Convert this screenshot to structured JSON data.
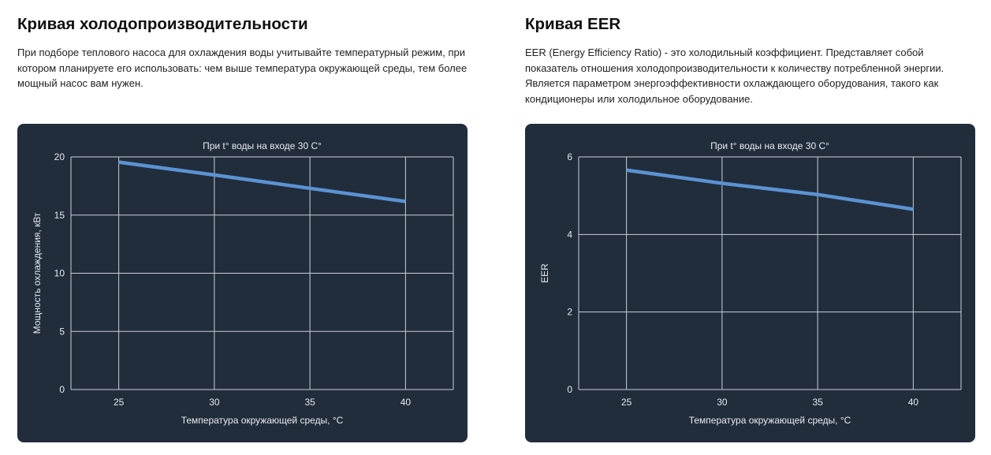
{
  "sections": [
    {
      "heading": "Кривая холодопроизводительности",
      "description": "При подборе теплового насоса для охлаждения воды учитывайте температурный режим, при котором планируете его использовать: чем выше температура окружающей среды, тем более мощный насос вам нужен."
    },
    {
      "heading": "Кривая EER",
      "description": "EER (Energy Efficiency Ratio) - это холодильный коэффициент. Представляет собой показатель отношения холодопроизводительности к количеству потребленной энергии. Является параметром энергоэффективности охлаждающего оборудования, такого как кондиционеры или холодильное оборудование."
    }
  ],
  "chart_data": [
    {
      "type": "line",
      "title": "При t° воды на входе 30 C°",
      "xlabel": "Температура окружающей среды, °C",
      "ylabel": "Мощность охлаждения, кВт",
      "x": [
        25,
        30,
        35,
        40
      ],
      "series": [
        {
          "name": "Мощность охлаждения",
          "values": [
            19.55,
            18.45,
            17.3,
            16.17
          ],
          "color": "#5b93d3"
        }
      ],
      "xticks": [
        "25",
        "30",
        "35",
        "40"
      ],
      "yticks": [
        "0",
        "5",
        "10",
        "15",
        "20"
      ],
      "xlim": [
        22.5,
        42.5
      ],
      "ylim": [
        0,
        20
      ],
      "grid": true,
      "background": "#222d3c"
    },
    {
      "type": "line",
      "title": "При t° воды на входе 30 C°",
      "xlabel": "Температура окружающей среды, °C",
      "ylabel": "EER",
      "x": [
        25,
        30,
        35,
        40
      ],
      "series": [
        {
          "name": "EER",
          "values": [
            5.66,
            5.32,
            5.03,
            4.65
          ],
          "color": "#5b93d3"
        }
      ],
      "xticks": [
        "25",
        "30",
        "35",
        "40"
      ],
      "yticks": [
        "0",
        "2",
        "4",
        "6"
      ],
      "xlim": [
        22.5,
        42.5
      ],
      "ylim": [
        0,
        6
      ],
      "grid": true,
      "background": "#222d3c"
    }
  ]
}
